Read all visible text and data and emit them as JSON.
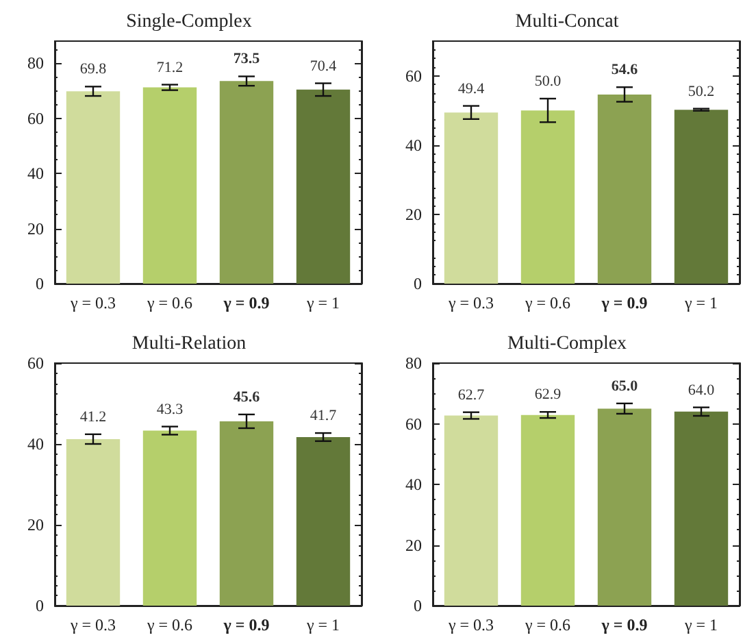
{
  "chart_data": [
    {
      "type": "bar",
      "title": "Single-Complex",
      "categories": [
        "γ = 0.3",
        "γ = 0.6",
        "γ = 0.9",
        "γ = 1"
      ],
      "values": [
        69.8,
        71.2,
        73.5,
        70.4
      ],
      "errors": [
        1.7,
        1,
        1.7,
        2.3
      ],
      "colors": [
        "#d0dc9c",
        "#b5cf6b",
        "#8ca252",
        "#637939"
      ],
      "ylim": [
        0,
        88
      ],
      "yticks": [
        0,
        20,
        40,
        60,
        80
      ],
      "value_labels": [
        "69.8",
        "71.2",
        "73.5",
        "70.4"
      ],
      "grid": false
    },
    {
      "type": "bar",
      "title": "Multi-Concat",
      "categories": [
        "γ = 0.3",
        "γ = 0.6",
        "γ = 0.9",
        "γ = 1"
      ],
      "values": [
        49.4,
        50.0,
        54.6,
        50.2
      ],
      "errors": [
        1.9,
        3.4,
        2.1,
        0.3
      ],
      "colors": [
        "#d0dc9c",
        "#b5cf6b",
        "#8ca252",
        "#637939"
      ],
      "ylim": [
        0,
        70
      ],
      "yticks": [
        0,
        20,
        40,
        60
      ],
      "value_labels": [
        "49.4",
        "50.0",
        "54.6",
        "50.2"
      ],
      "grid": false
    },
    {
      "type": "bar",
      "title": "Multi-Relation",
      "categories": [
        "γ = 0.3",
        "γ = 0.6",
        "γ = 0.9",
        "γ = 1"
      ],
      "values": [
        41.2,
        43.3,
        45.6,
        41.7
      ],
      "errors": [
        1.2,
        1,
        1.7,
        1
      ],
      "colors": [
        "#d0dc9c",
        "#b5cf6b",
        "#8ca252",
        "#637939"
      ],
      "ylim": [
        0,
        60
      ],
      "yticks": [
        0,
        20,
        40,
        60
      ],
      "value_labels": [
        "41.2",
        "43.3",
        "45.6",
        "41.7"
      ],
      "grid": false
    },
    {
      "type": "bar",
      "title": "Multi-Complex",
      "categories": [
        "γ = 0.3",
        "γ = 0.6",
        "γ = 0.9",
        "γ = 1"
      ],
      "values": [
        62.7,
        62.9,
        65.0,
        64.0
      ],
      "errors": [
        1.1,
        1,
        1.7,
        1.4
      ],
      "colors": [
        "#d0dc9c",
        "#b5cf6b",
        "#8ca252",
        "#637939"
      ],
      "ylim": [
        0,
        80
      ],
      "yticks": [
        0,
        20,
        40,
        60,
        80
      ],
      "value_labels": [
        "62.7",
        "62.9",
        "65.0",
        "64.0"
      ],
      "grid": false
    }
  ]
}
